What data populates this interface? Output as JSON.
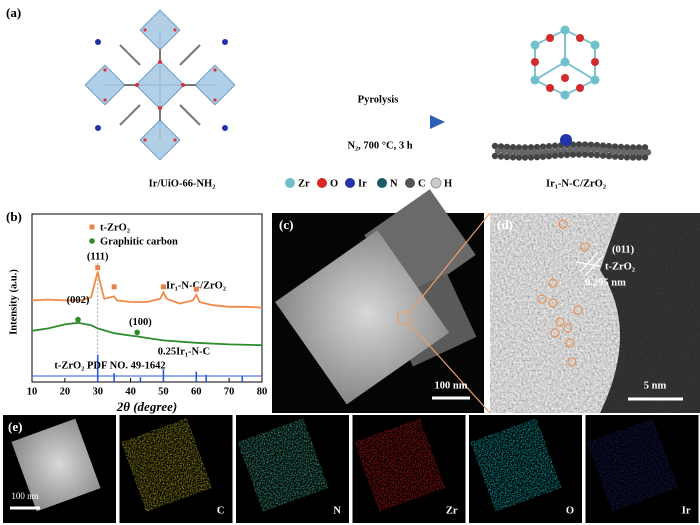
{
  "panel_a": {
    "label": "(a)",
    "step": "Pyrolysis",
    "conditions": "N₂, 700 °C, 3 h",
    "precursor": "Ir/UiO-66-NH₂",
    "product": "Ir₁-N-C/ZrO₂",
    "atom_legend": [
      "Zr",
      "O",
      "Ir",
      "N",
      "C",
      "H"
    ]
  },
  "chart_data": {
    "type": "line",
    "panel_label": "(b)",
    "x_label": "2θ (degree)",
    "y_label": "Intensity (a.u.)",
    "xlim": [
      10,
      80
    ],
    "xticks": [
      10,
      20,
      30,
      40,
      50,
      60,
      70,
      80
    ],
    "ylim": [
      0,
      10
    ],
    "series": [
      {
        "name": "Ir₁-N-C/ZrO₂",
        "color": "#f08a4b",
        "x": [
          10,
          15,
          20,
          25,
          28,
          29.5,
          30,
          30.5,
          32,
          35,
          35.8,
          40,
          45,
          49,
          50,
          51,
          55,
          59,
          60,
          61,
          65,
          70,
          75,
          80
        ],
        "values": [
          5.1,
          5.15,
          5.1,
          5.1,
          5.3,
          6.5,
          6.9,
          6.4,
          5.2,
          5.35,
          5.1,
          5.0,
          5.0,
          5.2,
          5.6,
          5.2,
          4.9,
          5.1,
          5.45,
          5.0,
          4.8,
          4.7,
          4.7,
          4.65
        ]
      },
      {
        "name": "0.25Ir₁-N-C",
        "color": "#2e8b2e",
        "x": [
          10,
          15,
          20,
          24,
          28,
          30,
          35,
          40,
          42,
          45,
          50,
          60,
          70,
          80
        ],
        "values": [
          3.2,
          3.35,
          3.6,
          3.7,
          3.55,
          3.35,
          3.05,
          2.9,
          2.85,
          2.75,
          2.6,
          2.45,
          2.35,
          2.3
        ]
      },
      {
        "name": "t-ZrO₂ PDF NO. 49-1642",
        "color": "#2a5bd7",
        "style": "stick",
        "x": [
          30,
          35,
          43,
          50,
          60,
          63,
          74
        ],
        "values": [
          1.7,
          0.55,
          0.3,
          0.8,
          0.65,
          0.45,
          0.4
        ]
      }
    ],
    "peak_markers": [
      {
        "name": "t-ZrO₂",
        "color": "#e8844a",
        "marker": "square",
        "x": [
          30,
          35,
          50,
          60
        ],
        "values": [
          7.15,
          5.95,
          5.95,
          5.8
        ]
      },
      {
        "name": "Graphitic carbon",
        "color": "#2e8b2e",
        "marker": "circle",
        "x": [
          24,
          42
        ],
        "values": [
          3.9,
          3.1
        ]
      }
    ],
    "annotations": [
      {
        "text": "(111)",
        "x": 30,
        "y": 7.8
      },
      {
        "text": "(002)",
        "x": 24,
        "y": 5.1
      },
      {
        "text": "(100)",
        "x": 43,
        "y": 3.7
      }
    ]
  },
  "panel_c": {
    "label": "(c)",
    "scale_bar": "100 nm"
  },
  "panel_d": {
    "label": "(d)",
    "plane": "(011)",
    "phase": "t-ZrO₂",
    "spacing": "0.295 nm",
    "scale_bar": "5 nm"
  },
  "panel_e": {
    "label": "(e)",
    "scale_bar": "100 nm",
    "maps": [
      "C",
      "N",
      "Zr",
      "O",
      "Ir"
    ]
  }
}
